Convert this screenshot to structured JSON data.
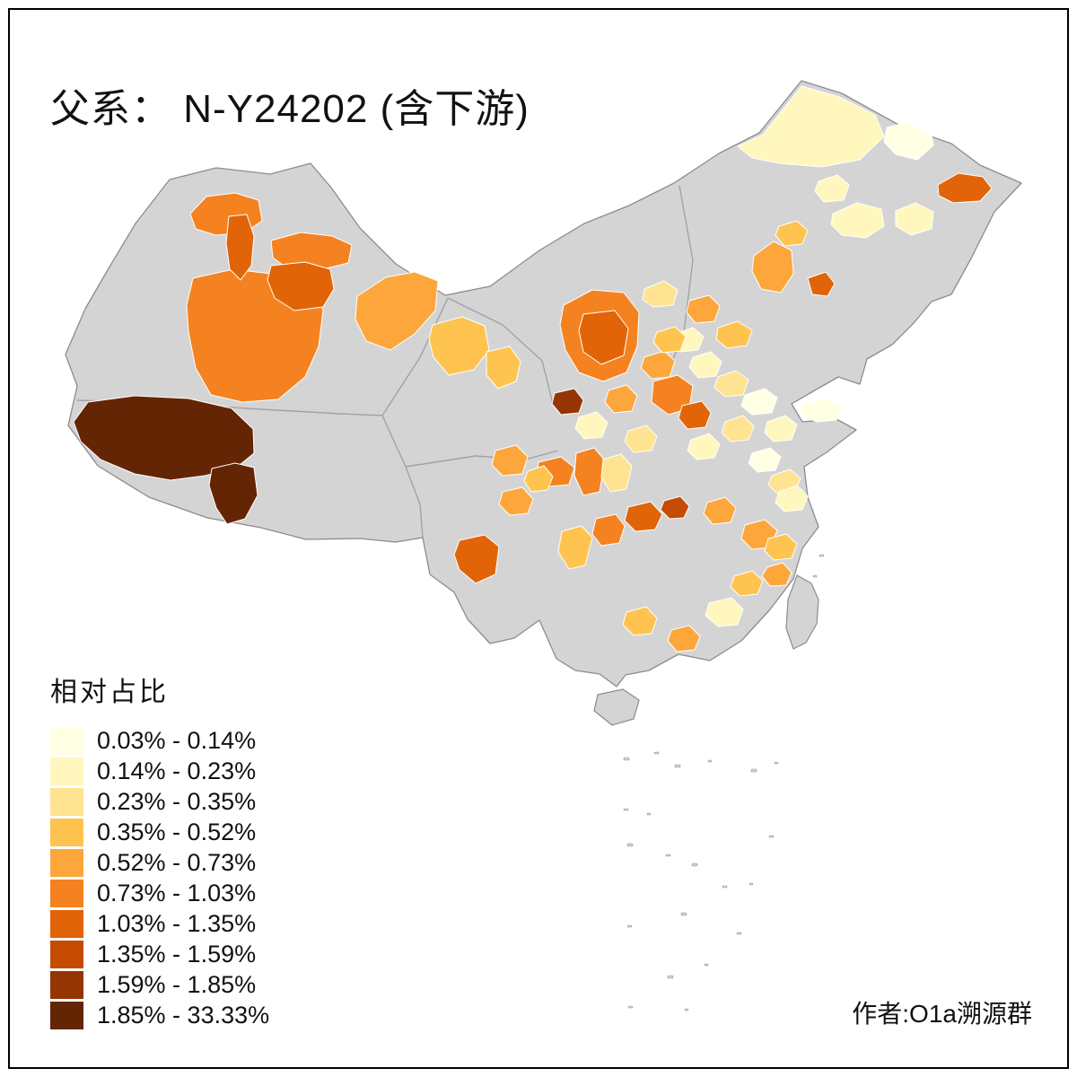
{
  "title": "父系： N-Y24202 (含下游)",
  "legend": {
    "title": "相对占比",
    "items": [
      {
        "label": "0.03% - 0.14%",
        "color": "#FFFFE3"
      },
      {
        "label": "0.14% - 0.23%",
        "color": "#FFF7BD"
      },
      {
        "label": "0.23% - 0.35%",
        "color": "#FEE391"
      },
      {
        "label": "0.35% - 0.52%",
        "color": "#FEC44F"
      },
      {
        "label": "0.52% - 0.73%",
        "color": "#FDA63B"
      },
      {
        "label": "0.73% - 1.03%",
        "color": "#F58220"
      },
      {
        "label": "1.03% - 1.35%",
        "color": "#E16508"
      },
      {
        "label": "1.35% - 1.59%",
        "color": "#C54B02"
      },
      {
        "label": "1.59% - 1.85%",
        "color": "#953503"
      },
      {
        "label": "1.85% - 33.33%",
        "color": "#642505"
      }
    ]
  },
  "attribution": "作者:O1a溯源群",
  "map": {
    "no_data_color": "#D4D4D4",
    "cell_border_color": "#FFFFFF",
    "outline_color": "#8C8C8C",
    "background": "#FFFFFF"
  }
}
